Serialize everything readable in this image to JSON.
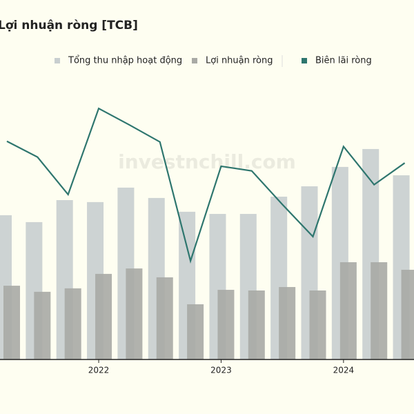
{
  "chart_data": {
    "type": "bar",
    "title": "Lợi nhuận ròng [TCB]",
    "watermark": "investnchill.com",
    "categories": [
      null,
      null,
      null,
      "2022",
      null,
      null,
      null,
      "2023",
      null,
      null,
      null,
      "2024",
      null,
      null
    ],
    "series": [
      {
        "name": "Tổng thu nhập hoạt động",
        "type": "bar",
        "color": "#c8cecf",
        "values": [
          8780,
          8360,
          9700,
          9580,
          10460,
          9830,
          8990,
          8860,
          8860,
          9910,
          10540,
          11720,
          12810,
          11210
        ]
      },
      {
        "name": "Lợi nhuận ròng",
        "type": "bar",
        "color": "#a9aaa5",
        "values": [
          4490,
          4120,
          4330,
          5210,
          5540,
          5000,
          3360,
          4240,
          4200,
          4410,
          4200,
          5920,
          5920,
          5460
        ]
      },
      {
        "name": "Biên lãi ròng",
        "type": "line",
        "axis": "y2",
        "color": "#2e766e",
        "values": [
          5.32,
          5.08,
          4.51,
          5.82,
          5.57,
          5.31,
          3.5,
          4.94,
          4.87,
          4.36,
          3.87,
          5.24,
          4.66,
          4.99
        ]
      }
    ],
    "ylim": [
      0,
      16000
    ],
    "y2lim": [
      2,
      6
    ]
  }
}
